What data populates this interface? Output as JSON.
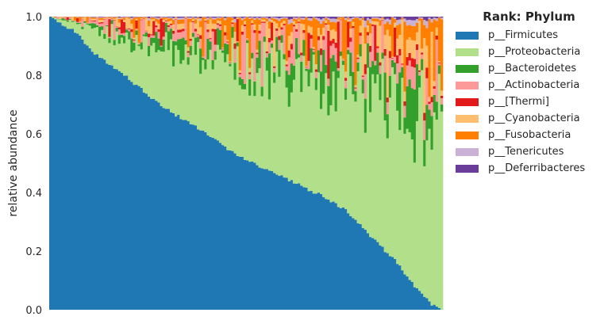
{
  "chart_data": {
    "type": "bar",
    "stacked": true,
    "title": "",
    "xlabel": "",
    "ylabel": "relative abundance",
    "ylim": [
      0,
      1
    ],
    "yticks": [
      "0.0",
      "0.2",
      "0.4",
      "0.6",
      "0.8",
      "1.0"
    ],
    "legend_title": "Rank: Phylum",
    "legend_position": "right",
    "n_samples": 160,
    "firmicutes_profile": [
      [
        0,
        1.0
      ],
      [
        3,
        0.98
      ],
      [
        10,
        0.95
      ],
      [
        15,
        0.9
      ],
      [
        20,
        0.86
      ],
      [
        30,
        0.8
      ],
      [
        40,
        0.73
      ],
      [
        50,
        0.67
      ],
      [
        60,
        0.62
      ],
      [
        70,
        0.56
      ],
      [
        80,
        0.51
      ],
      [
        90,
        0.47
      ],
      [
        100,
        0.43
      ],
      [
        110,
        0.39
      ],
      [
        120,
        0.34
      ],
      [
        130,
        0.25
      ],
      [
        140,
        0.17
      ],
      [
        145,
        0.11
      ],
      [
        150,
        0.06
      ],
      [
        155,
        0.02
      ],
      [
        159,
        0.0
      ]
    ],
    "series": [
      {
        "name": "p__Firmicutes",
        "color": "#1f78b4"
      },
      {
        "name": "p__Proteobacteria",
        "color": "#b2df8a"
      },
      {
        "name": "p__Bacteroidetes",
        "color": "#33a02c"
      },
      {
        "name": "p__Actinobacteria",
        "color": "#fb9a99"
      },
      {
        "name": "p__[Thermi]",
        "color": "#e31a1c"
      },
      {
        "name": "p__Cyanobacteria",
        "color": "#fdbf6f"
      },
      {
        "name": "p__Fusobacteria",
        "color": "#ff7f00"
      },
      {
        "name": "p__Tenericutes",
        "color": "#cab2d6"
      },
      {
        "name": "p__Deferribacteres",
        "color": "#6a3d9a"
      }
    ]
  }
}
